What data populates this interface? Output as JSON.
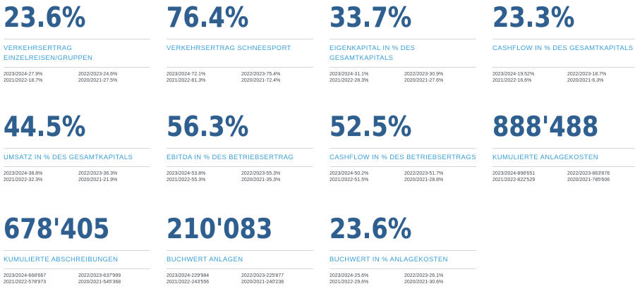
{
  "cards": [
    {
      "value": "23.6%",
      "label": "VERKEHRSERTRAG EINZELREISEN/GRUPPEN",
      "stats": [
        "2023/2024-27.9%",
        "2022/2023-24.6%",
        "2021/2022-18.7%",
        "2020/2021-27.5%"
      ]
    },
    {
      "value": "76.4%",
      "label": "VERKEHRSERTRAG SCHNEESPORT",
      "stats": [
        "2023/2024-72.1%",
        "2022/2023-75.4%",
        "2021/2022-81.3%",
        "2020/2021-72.4%"
      ]
    },
    {
      "value": "33.7%",
      "label": "EIGENKAPITAL IN % DES GESAMTKAPITALS",
      "stats": [
        "2023/2024-31.1%",
        "2022/2023-30.9%",
        "2021/2022-28.3%",
        "2020/2021-27.6%"
      ]
    },
    {
      "value": "23.3%",
      "label": "CASHFLOW IN % DES GESAMTKAPITALS",
      "stats": [
        "2023/2024-19.52%",
        "2022/2023-18.7%",
        "2021/2022-16.6%",
        "2020/2021-6.3%"
      ]
    },
    {
      "value": "44.5%",
      "label": "UMSATZ IN % DES GESAMTKAPITALS",
      "stats": [
        "2023/2024-38.8%",
        "2022/2023-36.3%",
        "2021/2022-32.3%",
        "2020/2021-21.9%"
      ]
    },
    {
      "value": "56.3%",
      "label": "EBITDA IN % DES BETRIEBSERTRAG",
      "stats": [
        "2023/2024-53.8%",
        "2022/2023-55.3%",
        "2021/2022-55.3%",
        "2020/2021-35.3%"
      ]
    },
    {
      "value": "52.5%",
      "label": "CASHFLOW IN % DES BETRIEBSERTRAGS",
      "stats": [
        "2023/2024-50.2%",
        "2022/2023-51.7%",
        "2021/2022-51.5%",
        "2020/2021-28.8%"
      ]
    },
    {
      "value": "888'488",
      "label": "KUMULIERTE ANLAGEKOSTEN",
      "stats": [
        "2023/2024-898'651",
        "2022/2023-863'876",
        "2021/2022-822'529",
        "2020/2021-785'606"
      ]
    },
    {
      "value": "678'405",
      "label": "KUMULIERTE ABSCHREIBUNGEN",
      "stats": [
        "2023/2024-668'667",
        "2022/2023-637'999",
        "2021/2022-578'973",
        "2020/2021-545'368"
      ]
    },
    {
      "value": "210'083",
      "label": "BUCHWERT ANLAGEN",
      "stats": [
        "2023/2024-229'984",
        "2022/2023-225'877",
        "2021/2022-243'556",
        "2020/2021-240'238"
      ]
    },
    {
      "value": "23.6%",
      "label": "BUCHWERT IN % ANLAGEKOSTEN",
      "stats": [
        "2023/2024-25.6%",
        "2022/2023-26.1%",
        "2021/2022-29.6%",
        "2020/2021-30.6%"
      ]
    }
  ]
}
